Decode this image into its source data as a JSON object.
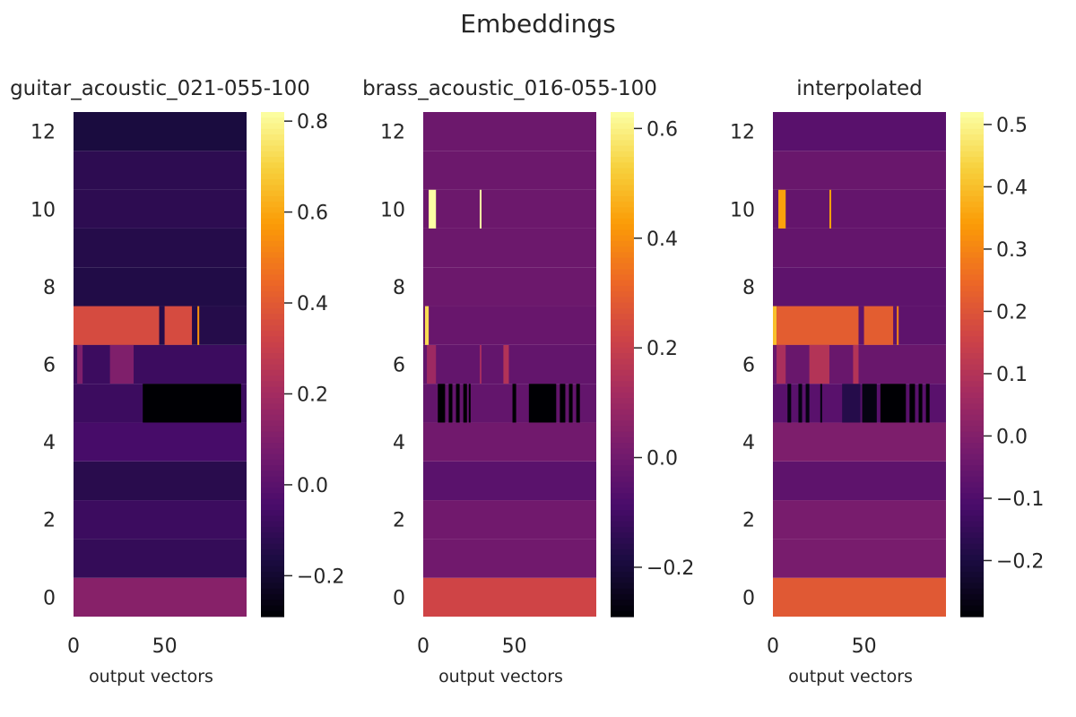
{
  "figure": {
    "title": "Embeddings"
  },
  "colormap": {
    "name": "inferno",
    "stops": [
      "#000004",
      "#1b0c41",
      "#4a0c6b",
      "#781c6d",
      "#a52c60",
      "#cf4446",
      "#ed6925",
      "#fb9b06",
      "#f7d13d",
      "#fcffa4"
    ]
  },
  "chart_data": [
    {
      "type": "heatmap",
      "title": "guitar_acoustic_021-055-100",
      "xlabel": "output vectors",
      "ylabel": "",
      "x_ticks": [
        0,
        50
      ],
      "y_ticks": [
        0,
        2,
        4,
        6,
        8,
        10,
        12
      ],
      "xlim": [
        0,
        95
      ],
      "ylim": [
        -0.5,
        12.5
      ],
      "colorbar": {
        "ticks": [
          "−0.2",
          "0.0",
          "0.2",
          "0.4",
          "0.6",
          "0.8"
        ],
        "tick_values": [
          -0.2,
          0.0,
          0.2,
          0.4,
          0.6,
          0.8
        ],
        "range": [
          -0.29,
          0.82
        ]
      },
      "rows": [
        {
          "row": 0,
          "default": 0.12,
          "segments": []
        },
        {
          "row": 1,
          "default": -0.1,
          "segments": []
        },
        {
          "row": 2,
          "default": -0.08,
          "segments": []
        },
        {
          "row": 3,
          "default": -0.13,
          "segments": []
        },
        {
          "row": 4,
          "default": -0.05,
          "segments": []
        },
        {
          "row": 5,
          "default": -0.08,
          "segments": [
            {
              "x0": 38,
              "x1": 92,
              "value": -0.29
            }
          ]
        },
        {
          "row": 6,
          "default": -0.08,
          "segments": [
            {
              "x0": 2,
              "x1": 5,
              "value": 0.1
            },
            {
              "x0": 20,
              "x1": 33,
              "value": 0.1
            }
          ]
        },
        {
          "row": 7,
          "default": -0.14,
          "segments": [
            {
              "x0": 0,
              "x1": 47,
              "value": 0.35
            },
            {
              "x0": 50,
              "x1": 65,
              "value": 0.35
            },
            {
              "x0": 68,
              "x1": 69,
              "value": 0.55
            }
          ]
        },
        {
          "row": 8,
          "default": -0.15,
          "segments": []
        },
        {
          "row": 9,
          "default": -0.14,
          "segments": []
        },
        {
          "row": 10,
          "default": -0.12,
          "segments": []
        },
        {
          "row": 11,
          "default": -0.12,
          "segments": []
        },
        {
          "row": 12,
          "default": -0.17,
          "segments": []
        }
      ]
    },
    {
      "type": "heatmap",
      "title": "brass_acoustic_016-055-100",
      "xlabel": "output vectors",
      "ylabel": "",
      "x_ticks": [
        0,
        50
      ],
      "y_ticks": [
        0,
        2,
        4,
        6,
        8,
        10,
        12
      ],
      "xlim": [
        0,
        95
      ],
      "ylim": [
        -0.5,
        12.5
      ],
      "colorbar": {
        "ticks": [
          "−0.2",
          "0.0",
          "0.2",
          "0.4",
          "0.6"
        ],
        "tick_values": [
          -0.2,
          0.0,
          0.2,
          0.4,
          0.6
        ],
        "range": [
          -0.29,
          0.63
        ]
      },
      "rows": [
        {
          "row": 0,
          "default": 0.22,
          "segments": []
        },
        {
          "row": 1,
          "default": 0.0,
          "segments": []
        },
        {
          "row": 2,
          "default": 0.0,
          "segments": []
        },
        {
          "row": 3,
          "default": -0.05,
          "segments": []
        },
        {
          "row": 4,
          "default": 0.0,
          "segments": []
        },
        {
          "row": 5,
          "default": -0.03,
          "segments": [
            {
              "x0": 8,
              "x1": 12,
              "value": -0.29
            },
            {
              "x0": 14,
              "x1": 16,
              "value": -0.29
            },
            {
              "x0": 18,
              "x1": 20,
              "value": -0.29
            },
            {
              "x0": 22,
              "x1": 24,
              "value": -0.29
            },
            {
              "x0": 25,
              "x1": 26,
              "value": -0.29
            },
            {
              "x0": 49,
              "x1": 51,
              "value": -0.29
            },
            {
              "x0": 58,
              "x1": 73,
              "value": -0.29
            },
            {
              "x0": 75,
              "x1": 78,
              "value": -0.29
            },
            {
              "x0": 80,
              "x1": 82,
              "value": -0.29
            },
            {
              "x0": 84,
              "x1": 86,
              "value": -0.29
            }
          ]
        },
        {
          "row": 6,
          "default": -0.03,
          "segments": [
            {
              "x0": 2,
              "x1": 7,
              "value": 0.1
            },
            {
              "x0": 31,
              "x1": 32,
              "value": 0.12
            },
            {
              "x0": 44,
              "x1": 47,
              "value": 0.15
            }
          ]
        },
        {
          "row": 7,
          "default": -0.02,
          "segments": [
            {
              "x0": 1,
              "x1": 3,
              "value": 0.55
            }
          ]
        },
        {
          "row": 8,
          "default": -0.01,
          "segments": []
        },
        {
          "row": 9,
          "default": -0.01,
          "segments": []
        },
        {
          "row": 10,
          "default": -0.01,
          "segments": [
            {
              "x0": 3,
              "x1": 7,
              "value": 0.63
            },
            {
              "x0": 31,
              "x1": 32,
              "value": 0.63
            }
          ]
        },
        {
          "row": 11,
          "default": -0.01,
          "segments": []
        },
        {
          "row": 12,
          "default": -0.01,
          "segments": []
        }
      ]
    },
    {
      "type": "heatmap",
      "title": "interpolated",
      "xlabel": "output vectors",
      "ylabel": "",
      "x_ticks": [
        0,
        50
      ],
      "y_ticks": [
        0,
        2,
        4,
        6,
        8,
        10,
        12
      ],
      "xlim": [
        0,
        95
      ],
      "ylim": [
        -0.5,
        12.5
      ],
      "colorbar": {
        "ticks": [
          "−0.2",
          "−0.1",
          "0.0",
          "0.1",
          "0.2",
          "0.3",
          "0.4",
          "0.5"
        ],
        "tick_values": [
          -0.2,
          -0.1,
          0.0,
          0.1,
          0.2,
          0.3,
          0.4,
          0.5
        ],
        "range": [
          -0.29,
          0.52
        ]
      },
      "rows": [
        {
          "row": 0,
          "default": 0.21,
          "segments": []
        },
        {
          "row": 1,
          "default": -0.02,
          "segments": []
        },
        {
          "row": 2,
          "default": -0.02,
          "segments": []
        },
        {
          "row": 3,
          "default": -0.07,
          "segments": []
        },
        {
          "row": 4,
          "default": -0.01,
          "segments": []
        },
        {
          "row": 5,
          "default": -0.08,
          "segments": [
            {
              "x0": 8,
              "x1": 10,
              "value": -0.27
            },
            {
              "x0": 14,
              "x1": 16,
              "value": -0.27
            },
            {
              "x0": 18,
              "x1": 20,
              "value": -0.27
            },
            {
              "x0": 26,
              "x1": 27,
              "value": -0.27
            },
            {
              "x0": 38,
              "x1": 48,
              "value": -0.18
            },
            {
              "x0": 49,
              "x1": 57,
              "value": -0.27
            },
            {
              "x0": 59,
              "x1": 73,
              "value": -0.29
            },
            {
              "x0": 75,
              "x1": 78,
              "value": -0.29
            },
            {
              "x0": 80,
              "x1": 82,
              "value": -0.29
            },
            {
              "x0": 84,
              "x1": 86,
              "value": -0.29
            }
          ]
        },
        {
          "row": 6,
          "default": -0.05,
          "segments": [
            {
              "x0": 2,
              "x1": 7,
              "value": 0.08
            },
            {
              "x0": 20,
              "x1": 31,
              "value": 0.1
            },
            {
              "x0": 44,
              "x1": 47,
              "value": 0.1
            }
          ]
        },
        {
          "row": 7,
          "default": -0.07,
          "segments": [
            {
              "x0": 0,
              "x1": 2,
              "value": 0.4
            },
            {
              "x0": 2,
              "x1": 47,
              "value": 0.22
            },
            {
              "x0": 50,
              "x1": 66,
              "value": 0.22
            },
            {
              "x0": 68,
              "x1": 69,
              "value": 0.3
            }
          ]
        },
        {
          "row": 8,
          "default": -0.07,
          "segments": []
        },
        {
          "row": 9,
          "default": -0.06,
          "segments": []
        },
        {
          "row": 10,
          "default": -0.06,
          "segments": [
            {
              "x0": 3,
              "x1": 7,
              "value": 0.35
            },
            {
              "x0": 31,
              "x1": 32,
              "value": 0.35
            }
          ]
        },
        {
          "row": 11,
          "default": -0.05,
          "segments": []
        },
        {
          "row": 12,
          "default": -0.08,
          "segments": []
        }
      ]
    }
  ]
}
